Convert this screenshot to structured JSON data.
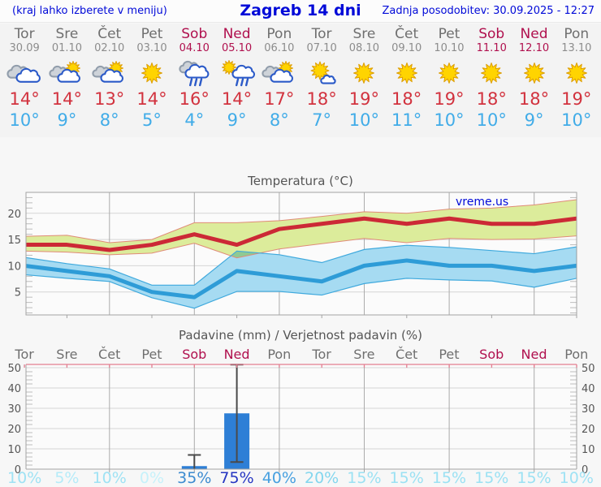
{
  "header": {
    "menu_hint": "(kraj lahko izberete v meniju)",
    "title": "Zagreb 14 dni",
    "last_update": "Zadnja posodobitev: 30.09.2025 - 12:27"
  },
  "watermark": "vreme.us",
  "colors": {
    "link_blue": "#0009d8",
    "weekend": "#b0104e",
    "max_temp_text": "#d2323e",
    "min_temp_text": "#41ace8",
    "max_line": "#cc2936",
    "max_band_fill": "#dcec9b",
    "max_band_stroke": "#e08b78",
    "min_line": "#2e9cd7",
    "min_band_fill": "#a6dbf2",
    "min_band_stroke": "#3fa9dd",
    "bar_blue": "#2e7fd6",
    "whisker": "#4a4a4a",
    "grid_h": "#d5d5d5",
    "grid_v": "#ababab",
    "axis": "#a3a3a3",
    "precip_top_border": "#e27e90"
  },
  "days": [
    {
      "name": "Tor",
      "date": "30.09",
      "weekend": false,
      "icon": "cloudy",
      "tmax": "14°",
      "tmin": "10°",
      "precip_prob": 10,
      "prob_color": "#9fe2f4"
    },
    {
      "name": "Sre",
      "date": "01.10",
      "weekend": false,
      "icon": "partly-cloudy",
      "tmax": "14°",
      "tmin": "9°",
      "precip_prob": 5,
      "prob_color": "#b5ebf8"
    },
    {
      "name": "Čet",
      "date": "02.10",
      "weekend": false,
      "icon": "partly-cloudy",
      "tmax": "13°",
      "tmin": "8°",
      "precip_prob": 10,
      "prob_color": "#9fe2f4"
    },
    {
      "name": "Pet",
      "date": "03.10",
      "weekend": false,
      "icon": "sunny",
      "tmax": "14°",
      "tmin": "5°",
      "precip_prob": 0,
      "prob_color": "#c6f1fa"
    },
    {
      "name": "Sob",
      "date": "04.10",
      "weekend": true,
      "icon": "rain",
      "tmax": "16°",
      "tmin": "4°",
      "precip_prob": 35,
      "prob_color": "#3c8bd0"
    },
    {
      "name": "Ned",
      "date": "05.10",
      "weekend": true,
      "icon": "sun-rain",
      "tmax": "14°",
      "tmin": "9°",
      "precip_prob": 75,
      "prob_color": "#2636c2"
    },
    {
      "name": "Pon",
      "date": "06.10",
      "weekend": false,
      "icon": "partly-cloudy",
      "tmax": "17°",
      "tmin": "8°",
      "precip_prob": 40,
      "prob_color": "#47a0e0"
    },
    {
      "name": "Tor",
      "date": "07.10",
      "weekend": false,
      "icon": "sun-small-cloud",
      "tmax": "18°",
      "tmin": "7°",
      "precip_prob": 20,
      "prob_color": "#83d6ee"
    },
    {
      "name": "Sre",
      "date": "08.10",
      "weekend": false,
      "icon": "sunny",
      "tmax": "19°",
      "tmin": "10°",
      "precip_prob": 15,
      "prob_color": "#9be1f3"
    },
    {
      "name": "Čet",
      "date": "09.10",
      "weekend": false,
      "icon": "sunny",
      "tmax": "18°",
      "tmin": "11°",
      "precip_prob": 15,
      "prob_color": "#9be1f3"
    },
    {
      "name": "Pet",
      "date": "10.10",
      "weekend": false,
      "icon": "sunny",
      "tmax": "19°",
      "tmin": "10°",
      "precip_prob": 15,
      "prob_color": "#9be1f3"
    },
    {
      "name": "Sob",
      "date": "11.10",
      "weekend": true,
      "icon": "sunny",
      "tmax": "18°",
      "tmin": "10°",
      "precip_prob": 15,
      "prob_color": "#9be1f3"
    },
    {
      "name": "Ned",
      "date": "12.10",
      "weekend": true,
      "icon": "sunny",
      "tmax": "18°",
      "tmin": "9°",
      "precip_prob": 15,
      "prob_color": "#9be1f3"
    },
    {
      "name": "Pon",
      "date": "13.10",
      "weekend": false,
      "icon": "sunny",
      "tmax": "19°",
      "tmin": "10°",
      "precip_prob": 10,
      "prob_color": "#9fe2f4"
    }
  ],
  "chart_data": [
    {
      "type": "line",
      "title": "Temperatura (°C)",
      "categories": [
        "Tor 30.09",
        "Sre 01.10",
        "Čet 02.10",
        "Pet 03.10",
        "Sob 04.10",
        "Ned 05.10",
        "Pon 06.10",
        "Tor 07.10",
        "Sre 08.10",
        "Čet 09.10",
        "Pet 10.10",
        "Sob 11.10",
        "Ned 12.10",
        "Pon 13.10"
      ],
      "ylim": [
        0,
        24
      ],
      "yticks": [
        5,
        10,
        15,
        20
      ],
      "grid": true,
      "annotation": "vreme.us",
      "series": [
        {
          "name": "max temperatura",
          "kind": "line",
          "color": "#cc2936",
          "values": [
            14,
            14,
            13,
            14,
            16,
            14,
            17,
            18,
            19,
            18,
            19,
            18,
            18,
            19
          ]
        },
        {
          "name": "max razpon",
          "kind": "band",
          "fill": "#dcec9b",
          "stroke": "#e08b78",
          "upper": [
            15.6,
            15.8,
            14.4,
            15.0,
            18.2,
            18.2,
            18.6,
            19.4,
            20.3,
            20.0,
            20.8,
            21.0,
            21.6,
            22.6
          ],
          "lower": [
            12.8,
            12.6,
            12.1,
            12.4,
            14.3,
            11.5,
            13.2,
            14.2,
            15.2,
            14.4,
            15.2,
            15.0,
            15.1,
            15.7
          ]
        },
        {
          "name": "min temperatura",
          "kind": "line",
          "color": "#2e9cd7",
          "values": [
            10,
            9,
            8,
            5,
            4,
            9,
            8,
            7,
            10,
            11,
            10,
            10,
            9,
            10
          ]
        },
        {
          "name": "min razpon",
          "kind": "band",
          "fill": "#a6dbf2",
          "stroke": "#3fa9dd",
          "upper": [
            11.6,
            10.4,
            9.4,
            6.3,
            6.3,
            12.8,
            12.1,
            10.6,
            13.1,
            13.9,
            13.5,
            12.9,
            12.3,
            13.6
          ],
          "lower": [
            8.3,
            7.6,
            7.0,
            3.9,
            1.9,
            5.1,
            5.1,
            4.4,
            6.6,
            7.6,
            7.3,
            7.1,
            5.9,
            7.6
          ]
        }
      ]
    },
    {
      "type": "bar",
      "title": "Padavine (mm) / Verjetnost padavin (%)",
      "categories": [
        "Tor",
        "Sre",
        "Čet",
        "Pet",
        "Sob",
        "Ned",
        "Pon",
        "Tor",
        "Sre",
        "Čet",
        "Pet",
        "Sob",
        "Ned",
        "Pon"
      ],
      "values": [
        0,
        0,
        0,
        0,
        1.5,
        27.5,
        0,
        0,
        0,
        0,
        0,
        0,
        0,
        0
      ],
      "ranges": [
        null,
        null,
        null,
        null,
        [
          0,
          7
        ],
        [
          3.5,
          51.5
        ],
        null,
        null,
        null,
        null,
        null,
        null,
        null,
        null
      ],
      "probabilities": [
        10,
        5,
        10,
        0,
        35,
        75,
        40,
        20,
        15,
        15,
        15,
        15,
        15,
        10
      ],
      "ylim": [
        0,
        52
      ],
      "yticks": [
        0,
        10,
        20,
        30,
        40,
        50
      ],
      "grid": true,
      "bar_color": "#2e7fd6"
    }
  ]
}
